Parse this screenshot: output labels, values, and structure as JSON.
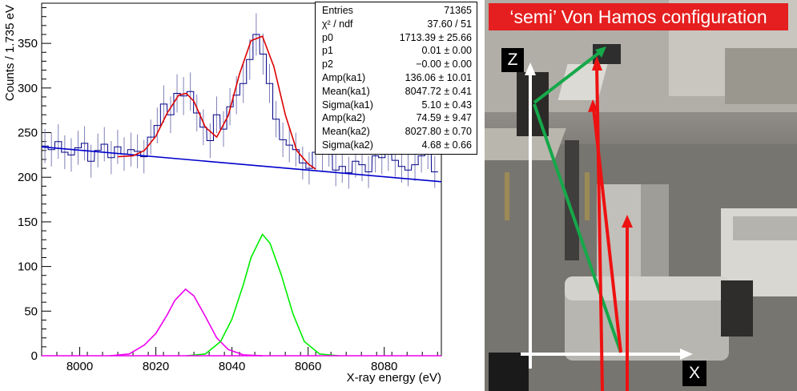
{
  "chart_data": {
    "type": "histogram",
    "xlabel": "X-ray energy (eV)",
    "ylabel": "Counts / 1.735 eV",
    "xlim": [
      7990,
      8095
    ],
    "ylim": [
      0,
      395
    ],
    "x_ticks": [
      8000,
      8020,
      8040,
      8060,
      8080
    ],
    "y_ticks": [
      0,
      50,
      100,
      150,
      200,
      250,
      300,
      350
    ],
    "bin_width": 1.735,
    "histogram": {
      "color": "#000088",
      "bin_low_edges": [
        7990.0,
        7991.7,
        7993.5,
        7995.2,
        7996.9,
        7998.7,
        8000.4,
        8002.1,
        8003.9,
        8005.6,
        8007.4,
        8009.1,
        8010.8,
        8012.6,
        8014.3,
        8016.0,
        8017.8,
        8019.5,
        8021.2,
        8023.0,
        8024.7,
        8026.4,
        8028.2,
        8029.9,
        8031.6,
        8033.4,
        8035.1,
        8036.9,
        8038.6,
        8040.3,
        8042.1,
        8043.8,
        8045.5,
        8047.3,
        8049.0,
        8050.7,
        8052.5,
        8054.2,
        8055.9,
        8057.7,
        8059.4,
        8061.1,
        8062.9,
        8064.6,
        8066.4,
        8068.1,
        8069.8,
        8071.6,
        8073.3,
        8075.0,
        8076.8,
        8078.5,
        8080.2,
        8082.0,
        8083.7,
        8085.4,
        8087.2,
        8088.9,
        8090.6,
        8092.4
      ],
      "counts": [
        235,
        231,
        240,
        228,
        225,
        233,
        238,
        218,
        230,
        237,
        222,
        234,
        226,
        231,
        229,
        223,
        245,
        258,
        282,
        270,
        294,
        291,
        296,
        272,
        256,
        241,
        270,
        254,
        279,
        292,
        305,
        332,
        360,
        338,
        305,
        265,
        242,
        236,
        231,
        216,
        210,
        228,
        226,
        231,
        208,
        212,
        205,
        218,
        214,
        206,
        224,
        222,
        226,
        219,
        212,
        208,
        214,
        224,
        228,
        206
      ]
    },
    "series": [
      {
        "name": "",
        "color": "#0000cc",
        "kind": "background fit (linear)",
        "x": [
          7990,
          8095
        ],
        "y": [
          234,
          195
        ]
      },
      {
        "name": "",
        "color": "#dd0000",
        "kind": "total fit",
        "x": [
          8010,
          8014,
          8017,
          8020,
          8023,
          8026,
          8028,
          8030,
          8033,
          8036,
          8039,
          8042,
          8045,
          8048,
          8051,
          8054,
          8057,
          8060,
          8062
        ],
        "y": [
          223,
          224,
          230,
          246,
          272,
          292,
          294,
          285,
          256,
          245,
          269,
          316,
          353,
          358,
          324,
          270,
          230,
          215,
          209
        ]
      },
      {
        "name": "",
        "color": "#ee00ee",
        "kind": "Gaussian ka2",
        "x": [
          8008,
          8013,
          8017,
          8020,
          8023,
          8025,
          8027.8,
          8030,
          8033,
          8036,
          8039,
          8043,
          8048
        ],
        "y": [
          0,
          2,
          12,
          25,
          46,
          62,
          74.6,
          67,
          44,
          20,
          7,
          1,
          0
        ]
      },
      {
        "name": "",
        "color": "#00ee00",
        "kind": "Gaussian ka1",
        "x": [
          8028,
          8033,
          8037,
          8040,
          8043,
          8045,
          8048,
          8050,
          8053,
          8056,
          8059,
          8063,
          8068
        ],
        "y": [
          0,
          2,
          16,
          41,
          80,
          110,
          136,
          126,
          90,
          47,
          16,
          2,
          0
        ]
      }
    ],
    "stats": [
      {
        "name": "Entries",
        "value": "71365"
      },
      {
        "name": "χ² / ndf",
        "value": "37.60 / 51"
      },
      {
        "name": "p0",
        "value": "1713.39 ± 25.66"
      },
      {
        "name": "p1",
        "value": "0.01 ± 0.00"
      },
      {
        "name": "p2",
        "value": "−0.00 ± 0.00"
      },
      {
        "name": "Amp(ka1)",
        "value": "136.06 ± 10.01"
      },
      {
        "name": "Mean(ka1)",
        "value": "8047.72 ± 0.41"
      },
      {
        "name": "Sigma(ka1)",
        "value": "5.10 ± 0.43"
      },
      {
        "name": "Amp(ka2)",
        "value": "74.59 ± 9.47"
      },
      {
        "name": "Mean(ka2)",
        "value": "8027.80 ± 0.70"
      },
      {
        "name": "Sigma(ka2)",
        "value": "4.68 ± 0.66"
      }
    ]
  },
  "photo": {
    "banner": "‘semi’ Von Hamos configuration",
    "axis_z": "Z",
    "axis_x": "X",
    "colors": {
      "banner": "#e51f1f",
      "ray_red": "#ee1111",
      "ray_green": "#16a84a",
      "axis": "#ffffff"
    }
  }
}
